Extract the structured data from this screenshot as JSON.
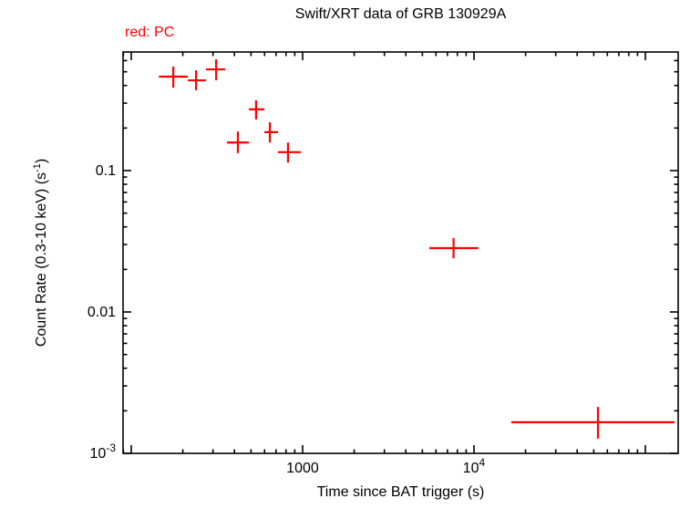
{
  "page": {
    "background": "#ffffff"
  },
  "header": {
    "title": "Swift/XRT data of GRB 130929A",
    "legend": "red: PC"
  },
  "axes": {
    "xlabel": "Time since BAT trigger (s)",
    "ylabel_pre": "Count Rate (0.3-10 keV) (s",
    "ylabel_sup": "-1",
    "ylabel_post": ")"
  },
  "chart_data": {
    "type": "scatter",
    "title": "Swift/XRT data of GRB 130929A",
    "xlabel": "Time since BAT trigger (s)",
    "ylabel": "Count Rate (0.3-10 keV) (s^-1)",
    "legend_entries": [
      {
        "label": "red: PC",
        "color": "#ff0000"
      }
    ],
    "mode": "PC",
    "series_color": "#ff0000",
    "frame_color": "#000000",
    "xscale": "log",
    "yscale": "log",
    "grid": false,
    "xlim": [
      89.6,
      155400
    ],
    "ylim": [
      0.001,
      0.69
    ],
    "xticks": [
      {
        "v": 1000,
        "base": "1000",
        "exp": ""
      },
      {
        "v": 10000,
        "base": "10",
        "exp": "4"
      }
    ],
    "yticks": [
      {
        "v": 0.1,
        "base": "0.1",
        "exp": ""
      },
      {
        "v": 0.01,
        "base": "0.01",
        "exp": ""
      },
      {
        "v": 0.001,
        "base": "10",
        "exp": "-3"
      }
    ],
    "points": [
      {
        "t": 176,
        "t_lo": 145,
        "t_hi": 214,
        "rate": 0.462,
        "rate_lo": 0.386,
        "rate_hi": 0.544
      },
      {
        "t": 239,
        "t_lo": 214,
        "t_hi": 273,
        "rate": 0.435,
        "rate_lo": 0.37,
        "rate_hi": 0.513
      },
      {
        "t": 313,
        "t_lo": 273,
        "t_hi": 353,
        "rate": 0.52,
        "rate_lo": 0.435,
        "rate_hi": 0.613
      },
      {
        "t": 419,
        "t_lo": 362,
        "t_hi": 486,
        "rate": 0.158,
        "rate_lo": 0.133,
        "rate_hi": 0.189
      },
      {
        "t": 535,
        "t_lo": 486,
        "t_hi": 598,
        "rate": 0.271,
        "rate_lo": 0.23,
        "rate_hi": 0.314
      },
      {
        "t": 644,
        "t_lo": 598,
        "t_hi": 719,
        "rate": 0.187,
        "rate_lo": 0.158,
        "rate_hi": 0.22
      },
      {
        "t": 822,
        "t_lo": 719,
        "t_hi": 976,
        "rate": 0.135,
        "rate_lo": 0.114,
        "rate_hi": 0.158
      },
      {
        "t": 7600,
        "t_lo": 5490,
        "t_hi": 10600,
        "rate": 0.0283,
        "rate_lo": 0.024,
        "rate_hi": 0.0333
      },
      {
        "t": 52900,
        "t_lo": 16500,
        "t_hi": 148000,
        "rate": 0.00166,
        "rate_lo": 0.00127,
        "rate_hi": 0.00213
      }
    ]
  }
}
